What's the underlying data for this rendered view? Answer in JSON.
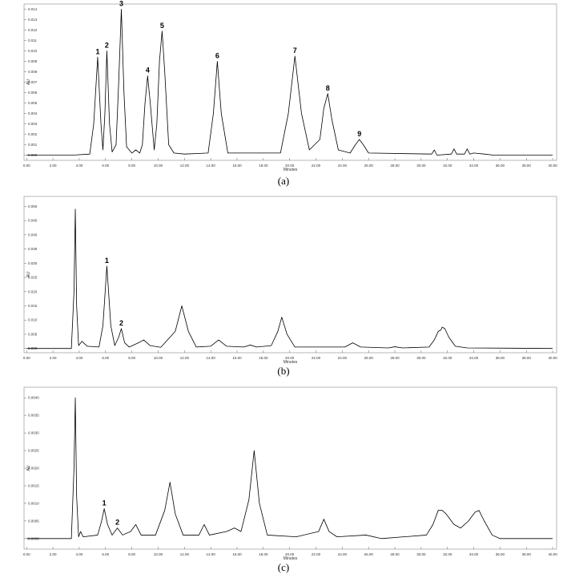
{
  "chart_data": [
    {
      "type": "line",
      "caption": "(a)",
      "ylabel": "AU",
      "xlabel": "Minutes",
      "color": "#000000",
      "xlim": [
        -0.2,
        40.3
      ],
      "ylim": [
        -0.0005,
        0.0145
      ],
      "xticks": [
        {
          "value": 0,
          "label": "0.00"
        },
        {
          "value": 2,
          "label": "2.00"
        },
        {
          "value": 4,
          "label": "4.00"
        },
        {
          "value": 6,
          "label": "6.00"
        },
        {
          "value": 8,
          "label": "8.00"
        },
        {
          "value": 10,
          "label": "10.00"
        },
        {
          "value": 12,
          "label": "12.00"
        },
        {
          "value": 14,
          "label": "14.00"
        },
        {
          "value": 16,
          "label": "16.00"
        },
        {
          "value": 18,
          "label": "18.00"
        },
        {
          "value": 20,
          "label": "20.00"
        },
        {
          "value": 22,
          "label": "22.00"
        },
        {
          "value": 24,
          "label": "24.00"
        },
        {
          "value": 26,
          "label": "26.00"
        },
        {
          "value": 28,
          "label": "28.00"
        },
        {
          "value": 30,
          "label": "30.00"
        },
        {
          "value": 32,
          "label": "32.00"
        },
        {
          "value": 34,
          "label": "34.00"
        },
        {
          "value": 36,
          "label": "36.00"
        },
        {
          "value": 38,
          "label": "38.00"
        },
        {
          "value": 40,
          "label": "40.00"
        }
      ],
      "yticks": [
        {
          "value": 0,
          "label": "0.000"
        },
        0.001,
        0.002,
        0.003,
        0.004,
        0.005,
        0.006,
        0.007,
        0.008,
        0.009,
        {
          "value": 0.01,
          "label": "0.010"
        },
        0.011,
        0.012,
        0.013,
        0.014
      ],
      "x": [
        0,
        3.5,
        4.8,
        5.1,
        5.4,
        5.65,
        5.8,
        5.95,
        6.1,
        6.3,
        6.5,
        6.8,
        7.0,
        7.2,
        7.4,
        7.6,
        8.0,
        8.3,
        8.6,
        8.8,
        9.0,
        9.2,
        9.4,
        9.7,
        9.9,
        10.1,
        10.3,
        10.5,
        10.8,
        11.2,
        12,
        13.8,
        14.2,
        14.5,
        14.8,
        15.3,
        19.3,
        19.9,
        20.4,
        20.9,
        21.5,
        22.3,
        22.6,
        22.9,
        23.2,
        23.7,
        24.6,
        25.0,
        25.3,
        25.6,
        26.0,
        30.8,
        31.0,
        31.2,
        32.3,
        32.5,
        32.7,
        33.3,
        33.5,
        33.7,
        34.0,
        34.8,
        35.5,
        40
      ],
      "values": [
        0,
        0,
        0.0001,
        0.003,
        0.0094,
        0.003,
        0.0005,
        0.004,
        0.01,
        0.003,
        0.0003,
        0.001,
        0.007,
        0.014,
        0.006,
        0.0008,
        0.0002,
        0.0005,
        0.0002,
        0.001,
        0.005,
        0.0076,
        0.005,
        0.0005,
        0.003,
        0.009,
        0.0119,
        0.008,
        0.001,
        0.0002,
        0.0001,
        0.0002,
        0.004,
        0.009,
        0.004,
        0.0002,
        0.0002,
        0.004,
        0.0095,
        0.004,
        0.0005,
        0.0015,
        0.0045,
        0.0059,
        0.0035,
        0.0005,
        0.0002,
        0.001,
        0.0015,
        0.001,
        0.0002,
        0.0001,
        0.0005,
        0,
        0.0001,
        0.0006,
        0.0001,
        0.0001,
        0.0006,
        0.0001,
        0.0002,
        0.0001,
        0,
        0
      ],
      "annotations": [
        {
          "text": "1",
          "x": 5.4,
          "y": 0.0094
        },
        {
          "text": "2",
          "x": 6.1,
          "y": 0.01
        },
        {
          "text": "3",
          "x": 7.2,
          "y": 0.014
        },
        {
          "text": "4",
          "x": 9.2,
          "y": 0.0076
        },
        {
          "text": "5",
          "x": 10.3,
          "y": 0.0119
        },
        {
          "text": "6",
          "x": 14.5,
          "y": 0.009
        },
        {
          "text": "7",
          "x": 20.4,
          "y": 0.0095
        },
        {
          "text": "8",
          "x": 22.9,
          "y": 0.0059
        },
        {
          "text": "9",
          "x": 25.3,
          "y": 0.0015
        }
      ]
    },
    {
      "type": "line",
      "caption": "(b)",
      "ylabel": "AU",
      "xlabel": "Minutes",
      "color": "#000000",
      "xlim": [
        -0.2,
        40.3
      ],
      "ylim": [
        -0.0015,
        0.0535
      ],
      "xticks": [
        {
          "value": 0,
          "label": "0.00"
        },
        {
          "value": 2,
          "label": "2.00"
        },
        {
          "value": 4,
          "label": "4.00"
        },
        {
          "value": 6,
          "label": "6.00"
        },
        {
          "value": 8,
          "label": "8.00"
        },
        {
          "value": 10,
          "label": "10.00"
        },
        {
          "value": 12,
          "label": "12.00"
        },
        {
          "value": 14,
          "label": "14.00"
        },
        {
          "value": 16,
          "label": "16.00"
        },
        {
          "value": 18,
          "label": "18.00"
        },
        {
          "value": 20,
          "label": "20.00"
        },
        {
          "value": 22,
          "label": "22.00"
        },
        {
          "value": 24,
          "label": "24.00"
        },
        {
          "value": 26,
          "label": "26.00"
        },
        {
          "value": 28,
          "label": "28.00"
        },
        {
          "value": 30,
          "label": "30.00"
        },
        {
          "value": 32,
          "label": "32.00"
        },
        {
          "value": 34,
          "label": "34.00"
        },
        {
          "value": 36,
          "label": "36.00"
        },
        {
          "value": 38,
          "label": "38.00"
        },
        {
          "value": 40,
          "label": "40.00"
        }
      ],
      "yticks": [
        {
          "value": 0,
          "label": "0.000"
        },
        0.005,
        {
          "value": 0.01,
          "label": "0.010"
        },
        0.015,
        {
          "value": 0.02,
          "label": "0.020"
        },
        0.025,
        {
          "value": 0.03,
          "label": "0.030"
        },
        0.035,
        {
          "value": 0.04,
          "label": "0.040"
        },
        0.045,
        {
          "value": 0.05,
          "label": "0.050"
        }
      ],
      "x": [
        0,
        3.4,
        3.6,
        3.7,
        3.8,
        3.95,
        4.2,
        4.6,
        5.5,
        5.8,
        6.1,
        6.4,
        6.7,
        7.0,
        7.2,
        7.45,
        7.8,
        8.5,
        8.9,
        9.4,
        10.2,
        11.3,
        11.8,
        12.3,
        12.9,
        14.0,
        14.6,
        15.2,
        16.5,
        17.0,
        17.5,
        18.6,
        19.1,
        19.4,
        19.8,
        20.4,
        24.2,
        24.8,
        25.4,
        27.5,
        28.0,
        28.6,
        30.6,
        31.0,
        31.3,
        31.5,
        31.6,
        31.8,
        32.1,
        32.6,
        33.5,
        40
      ],
      "values": [
        0,
        0,
        0.02,
        0.049,
        0.015,
        0.001,
        0.0025,
        0.0008,
        0.0005,
        0.008,
        0.029,
        0.008,
        0.001,
        0.004,
        0.007,
        0.002,
        0.0005,
        0.002,
        0.003,
        0.001,
        0.0004,
        0.006,
        0.015,
        0.006,
        0.0005,
        0.0008,
        0.003,
        0.0008,
        0.0005,
        0.0012,
        0.0005,
        0.001,
        0.006,
        0.011,
        0.005,
        0.0005,
        0.0005,
        0.002,
        0.0005,
        0.0002,
        0.0006,
        0.0002,
        0.0005,
        0.003,
        0.006,
        0.0065,
        0.0075,
        0.007,
        0.004,
        0.0008,
        0.0002,
        0
      ],
      "annotations": [
        {
          "text": "1",
          "x": 6.1,
          "y": 0.029
        },
        {
          "text": "2",
          "x": 7.2,
          "y": 0.007
        }
      ]
    },
    {
      "type": "line",
      "caption": "(c)",
      "ylabel": "AU",
      "xlabel": "Minutes",
      "color": "#000000",
      "xlim": [
        -0.2,
        40.3
      ],
      "ylim": [
        -0.0003,
        0.0043
      ],
      "xticks": [
        {
          "value": 0,
          "label": "0.00"
        },
        {
          "value": 2,
          "label": "2.00"
        },
        {
          "value": 4,
          "label": "4.00"
        },
        {
          "value": 6,
          "label": "6.00"
        },
        {
          "value": 8,
          "label": "8.00"
        },
        {
          "value": 10,
          "label": "10.00"
        },
        {
          "value": 12,
          "label": "12.00"
        },
        {
          "value": 14,
          "label": "14.00"
        },
        {
          "value": 16,
          "label": "16.00"
        },
        {
          "value": 18,
          "label": "18.00"
        },
        {
          "value": 20,
          "label": "20.00"
        },
        {
          "value": 22,
          "label": "22.00"
        },
        {
          "value": 24,
          "label": "24.00"
        },
        {
          "value": 26,
          "label": "26.00"
        },
        {
          "value": 28,
          "label": "28.00"
        },
        {
          "value": 30,
          "label": "30.00"
        },
        {
          "value": 32,
          "label": "32.00"
        },
        {
          "value": 34,
          "label": "34.00"
        },
        {
          "value": 36,
          "label": "36.00"
        },
        {
          "value": 38,
          "label": "38.00"
        },
        {
          "value": 40,
          "label": "40.00"
        }
      ],
      "yticks": [
        {
          "value": 0,
          "label": "0.0000"
        },
        0.0005,
        {
          "value": 0.001,
          "label": "0.0010"
        },
        0.0015,
        {
          "value": 0.002,
          "label": "0.0020"
        },
        0.0025,
        {
          "value": 0.003,
          "label": "0.0030"
        },
        0.0035,
        {
          "value": 0.004,
          "label": "0.0040"
        }
      ],
      "x": [
        0,
        3.4,
        3.6,
        3.7,
        3.8,
        3.95,
        4.1,
        4.3,
        5.4,
        5.7,
        5.9,
        6.15,
        6.5,
        6.9,
        7.3,
        7.9,
        8.3,
        8.7,
        9.8,
        10.5,
        10.9,
        11.3,
        11.9,
        13.1,
        13.5,
        13.9,
        15.2,
        15.8,
        16.3,
        16.9,
        17.3,
        17.7,
        18.3,
        20.5,
        22.2,
        22.6,
        23.0,
        23.6,
        25.8,
        27,
        30.4,
        30.9,
        31.3,
        31.6,
        31.9,
        32.5,
        33.0,
        33.6,
        34.1,
        34.4,
        34.8,
        35.4,
        36,
        40
      ],
      "values": [
        0,
        0,
        0.002,
        0.004,
        0.0012,
        5e-05,
        0.0002,
        5e-05,
        0.0001,
        0.0005,
        0.00085,
        0.0004,
        0.0001,
        0.0003,
        0.0001,
        0.0002,
        0.0004,
        0.0001,
        0.0001,
        0.0008,
        0.0016,
        0.0007,
        0.0001,
        0.0001,
        0.0004,
        0.0001,
        0.0002,
        0.0003,
        0.0002,
        0.0011,
        0.0025,
        0.001,
        0.0001,
        5e-05,
        0.0002,
        0.00055,
        0.0002,
        5e-05,
        0.0001,
        0,
        0.0001,
        0.0004,
        0.0008,
        0.0008,
        0.0007,
        0.0004,
        0.0003,
        0.0005,
        0.00075,
        0.0008,
        0.0005,
        0.0001,
        0,
        0
      ],
      "annotations": [
        {
          "text": "1",
          "x": 5.9,
          "y": 0.00085
        },
        {
          "text": "2",
          "x": 6.9,
          "y": 0.0003
        }
      ]
    }
  ]
}
